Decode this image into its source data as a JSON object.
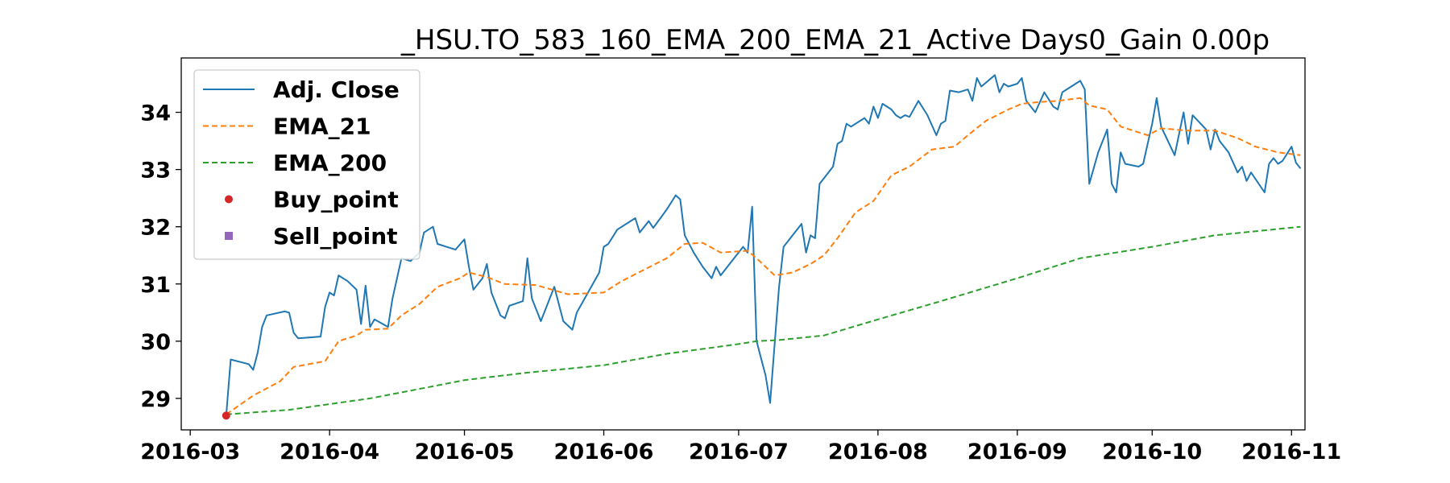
{
  "chart_data": {
    "type": "line",
    "title": "_HSU.TO_583_160_EMA_200_EMA_21_Active Days0_Gain   0.00p",
    "xlabel": "",
    "ylabel": "",
    "x_range": [
      "2016-02-28",
      "2016-11-04"
    ],
    "ylim": [
      28.45,
      34.95
    ],
    "x_ticks": [
      "2016-03",
      "2016-04",
      "2016-05",
      "2016-06",
      "2016-07",
      "2016-08",
      "2016-09",
      "2016-10",
      "2016-11"
    ],
    "y_ticks": [
      29,
      30,
      31,
      32,
      33,
      34
    ],
    "grid": false,
    "legend_position": "top-left",
    "series": [
      {
        "name": "Adj. Close",
        "style": "solid",
        "color": "#1f77b4",
        "points": [
          [
            "2016-03-09",
            28.7
          ],
          [
            "2016-03-10",
            29.68
          ],
          [
            "2016-03-14",
            29.6
          ],
          [
            "2016-03-15",
            29.5
          ],
          [
            "2016-03-16",
            29.8
          ],
          [
            "2016-03-17",
            30.25
          ],
          [
            "2016-03-18",
            30.45
          ],
          [
            "2016-03-22",
            30.52
          ],
          [
            "2016-03-23",
            30.5
          ],
          [
            "2016-03-24",
            30.15
          ],
          [
            "2016-03-25",
            30.05
          ],
          [
            "2016-03-30",
            30.08
          ],
          [
            "2016-03-31",
            30.6
          ],
          [
            "2016-04-01",
            30.85
          ],
          [
            "2016-04-02",
            30.8
          ],
          [
            "2016-04-03",
            31.15
          ],
          [
            "2016-04-05",
            31.05
          ],
          [
            "2016-04-07",
            30.9
          ],
          [
            "2016-04-08",
            30.3
          ],
          [
            "2016-04-09",
            30.97
          ],
          [
            "2016-04-10",
            30.25
          ],
          [
            "2016-04-11",
            30.38
          ],
          [
            "2016-04-14",
            30.25
          ],
          [
            "2016-04-15",
            30.75
          ],
          [
            "2016-04-17",
            31.45
          ],
          [
            "2016-04-19",
            31.4
          ],
          [
            "2016-04-21",
            31.55
          ],
          [
            "2016-04-22",
            31.9
          ],
          [
            "2016-04-24",
            32.0
          ],
          [
            "2016-04-25",
            31.7
          ],
          [
            "2016-04-27",
            31.65
          ],
          [
            "2016-04-29",
            31.6
          ],
          [
            "2016-05-01",
            31.78
          ],
          [
            "2016-05-02",
            31.3
          ],
          [
            "2016-05-03",
            30.9
          ],
          [
            "2016-05-05",
            31.1
          ],
          [
            "2016-05-06",
            31.35
          ],
          [
            "2016-05-07",
            30.85
          ],
          [
            "2016-05-09",
            30.45
          ],
          [
            "2016-05-10",
            30.4
          ],
          [
            "2016-05-11",
            30.62
          ],
          [
            "2016-05-14",
            30.7
          ],
          [
            "2016-05-15",
            31.45
          ],
          [
            "2016-05-16",
            30.75
          ],
          [
            "2016-05-18",
            30.35
          ],
          [
            "2016-05-21",
            30.95
          ],
          [
            "2016-05-23",
            30.35
          ],
          [
            "2016-05-25",
            30.2
          ],
          [
            "2016-05-26",
            30.5
          ],
          [
            "2016-05-31",
            31.2
          ],
          [
            "2016-06-01",
            31.65
          ],
          [
            "2016-06-02",
            31.7
          ],
          [
            "2016-06-04",
            31.95
          ],
          [
            "2016-06-08",
            32.15
          ],
          [
            "2016-06-09",
            31.9
          ],
          [
            "2016-06-11",
            32.1
          ],
          [
            "2016-06-12",
            31.98
          ],
          [
            "2016-06-15",
            32.3
          ],
          [
            "2016-06-17",
            32.55
          ],
          [
            "2016-06-18",
            32.48
          ],
          [
            "2016-06-19",
            31.85
          ],
          [
            "2016-06-21",
            31.55
          ],
          [
            "2016-06-23",
            31.3
          ],
          [
            "2016-06-25",
            31.1
          ],
          [
            "2016-06-26",
            31.3
          ],
          [
            "2016-06-27",
            31.15
          ],
          [
            "2016-06-30",
            31.45
          ],
          [
            "2016-07-02",
            31.65
          ],
          [
            "2016-07-03",
            31.55
          ],
          [
            "2016-07-04",
            32.35
          ],
          [
            "2016-07-05",
            30.0
          ],
          [
            "2016-07-07",
            29.4
          ],
          [
            "2016-07-08",
            28.92
          ],
          [
            "2016-07-10",
            30.95
          ],
          [
            "2016-07-11",
            31.65
          ],
          [
            "2016-07-15",
            32.05
          ],
          [
            "2016-07-16",
            31.55
          ],
          [
            "2016-07-17",
            31.85
          ],
          [
            "2016-07-18",
            31.8
          ],
          [
            "2016-07-19",
            32.75
          ],
          [
            "2016-07-22",
            33.05
          ],
          [
            "2016-07-23",
            33.45
          ],
          [
            "2016-07-24",
            33.5
          ],
          [
            "2016-07-25",
            33.8
          ],
          [
            "2016-07-26",
            33.75
          ],
          [
            "2016-07-29",
            33.9
          ],
          [
            "2016-07-30",
            33.8
          ],
          [
            "2016-07-31",
            34.1
          ],
          [
            "2016-08-01",
            33.9
          ],
          [
            "2016-08-02",
            34.15
          ],
          [
            "2016-08-04",
            34.05
          ],
          [
            "2016-08-05",
            33.95
          ],
          [
            "2016-08-06",
            33.9
          ],
          [
            "2016-08-07",
            33.95
          ],
          [
            "2016-08-08",
            33.92
          ],
          [
            "2016-08-10",
            34.2
          ],
          [
            "2016-08-12",
            33.95
          ],
          [
            "2016-08-14",
            33.6
          ],
          [
            "2016-08-15",
            33.8
          ],
          [
            "2016-08-16",
            33.85
          ],
          [
            "2016-08-17",
            34.38
          ],
          [
            "2016-08-19",
            34.35
          ],
          [
            "2016-08-21",
            34.4
          ],
          [
            "2016-08-22",
            34.2
          ],
          [
            "2016-08-23",
            34.6
          ],
          [
            "2016-08-24",
            34.45
          ],
          [
            "2016-08-27",
            34.65
          ],
          [
            "2016-08-28",
            34.35
          ],
          [
            "2016-08-29",
            34.5
          ],
          [
            "2016-08-30",
            34.45
          ],
          [
            "2016-09-01",
            34.5
          ],
          [
            "2016-09-02",
            34.6
          ],
          [
            "2016-09-03",
            34.2
          ],
          [
            "2016-09-05",
            34.0
          ],
          [
            "2016-09-07",
            34.35
          ],
          [
            "2016-09-09",
            34.1
          ],
          [
            "2016-09-10",
            34.05
          ],
          [
            "2016-09-11",
            34.35
          ],
          [
            "2016-09-13",
            34.45
          ],
          [
            "2016-09-15",
            34.55
          ],
          [
            "2016-09-16",
            34.4
          ],
          [
            "2016-09-17",
            32.75
          ],
          [
            "2016-09-19",
            33.3
          ],
          [
            "2016-09-21",
            33.7
          ],
          [
            "2016-09-22",
            32.75
          ],
          [
            "2016-09-23",
            32.6
          ],
          [
            "2016-09-24",
            33.3
          ],
          [
            "2016-09-25",
            33.1
          ],
          [
            "2016-09-28",
            33.05
          ],
          [
            "2016-09-29",
            33.1
          ],
          [
            "2016-10-01",
            33.8
          ],
          [
            "2016-10-02",
            34.25
          ],
          [
            "2016-10-03",
            33.75
          ],
          [
            "2016-10-06",
            33.25
          ],
          [
            "2016-10-08",
            34.0
          ],
          [
            "2016-10-09",
            33.45
          ],
          [
            "2016-10-10",
            33.95
          ],
          [
            "2016-10-13",
            33.7
          ],
          [
            "2016-10-14",
            33.35
          ],
          [
            "2016-10-15",
            33.7
          ],
          [
            "2016-10-16",
            33.5
          ],
          [
            "2016-10-18",
            33.3
          ],
          [
            "2016-10-20",
            32.95
          ],
          [
            "2016-10-21",
            33.05
          ],
          [
            "2016-10-22",
            32.8
          ],
          [
            "2016-10-23",
            32.95
          ],
          [
            "2016-10-26",
            32.6
          ],
          [
            "2016-10-27",
            33.1
          ],
          [
            "2016-10-28",
            33.2
          ],
          [
            "2016-10-29",
            33.1
          ],
          [
            "2016-10-30",
            33.15
          ],
          [
            "2016-11-01",
            33.4
          ],
          [
            "2016-11-02",
            33.12
          ],
          [
            "2016-11-03",
            33.02
          ]
        ]
      },
      {
        "name": "EMA_21",
        "style": "dashed",
        "color": "#ff7f0e",
        "points": [
          [
            "2016-03-09",
            28.72
          ],
          [
            "2016-03-15",
            29.05
          ],
          [
            "2016-03-21",
            29.3
          ],
          [
            "2016-03-24",
            29.55
          ],
          [
            "2016-03-31",
            29.65
          ],
          [
            "2016-04-03",
            30.0
          ],
          [
            "2016-04-07",
            30.1
          ],
          [
            "2016-04-09",
            30.2
          ],
          [
            "2016-04-14",
            30.22
          ],
          [
            "2016-04-17",
            30.45
          ],
          [
            "2016-04-21",
            30.65
          ],
          [
            "2016-04-25",
            30.95
          ],
          [
            "2016-04-30",
            31.1
          ],
          [
            "2016-05-02",
            31.2
          ],
          [
            "2016-05-06",
            31.12
          ],
          [
            "2016-05-10",
            31.0
          ],
          [
            "2016-05-17",
            30.98
          ],
          [
            "2016-05-24",
            30.82
          ],
          [
            "2016-06-01",
            30.85
          ],
          [
            "2016-06-05",
            31.05
          ],
          [
            "2016-06-10",
            31.25
          ],
          [
            "2016-06-15",
            31.45
          ],
          [
            "2016-06-19",
            31.7
          ],
          [
            "2016-06-23",
            31.72
          ],
          [
            "2016-06-27",
            31.55
          ],
          [
            "2016-07-03",
            31.58
          ],
          [
            "2016-07-05",
            31.45
          ],
          [
            "2016-07-09",
            31.15
          ],
          [
            "2016-07-13",
            31.2
          ],
          [
            "2016-07-17",
            31.35
          ],
          [
            "2016-07-20",
            31.5
          ],
          [
            "2016-07-23",
            31.8
          ],
          [
            "2016-07-27",
            32.25
          ],
          [
            "2016-07-31",
            32.45
          ],
          [
            "2016-08-04",
            32.9
          ],
          [
            "2016-08-08",
            33.05
          ],
          [
            "2016-08-13",
            33.35
          ],
          [
            "2016-08-18",
            33.4
          ],
          [
            "2016-08-21",
            33.6
          ],
          [
            "2016-08-25",
            33.85
          ],
          [
            "2016-08-30",
            34.05
          ],
          [
            "2016-09-02",
            34.15
          ],
          [
            "2016-09-06",
            34.18
          ],
          [
            "2016-09-10",
            34.2
          ],
          [
            "2016-09-15",
            34.25
          ],
          [
            "2016-09-17",
            34.12
          ],
          [
            "2016-09-21",
            34.05
          ],
          [
            "2016-09-24",
            33.75
          ],
          [
            "2016-09-30",
            33.6
          ],
          [
            "2016-10-03",
            33.72
          ],
          [
            "2016-10-09",
            33.68
          ],
          [
            "2016-10-15",
            33.68
          ],
          [
            "2016-10-20",
            33.55
          ],
          [
            "2016-10-24",
            33.4
          ],
          [
            "2016-10-29",
            33.3
          ],
          [
            "2016-11-03",
            33.25
          ]
        ]
      },
      {
        "name": "EMA_200",
        "style": "dashed",
        "color": "#2ca02c",
        "points": [
          [
            "2016-03-09",
            28.72
          ],
          [
            "2016-03-23",
            28.8
          ],
          [
            "2016-04-01",
            28.9
          ],
          [
            "2016-04-10",
            29.0
          ],
          [
            "2016-04-20",
            29.15
          ],
          [
            "2016-05-01",
            29.32
          ],
          [
            "2016-05-15",
            29.45
          ],
          [
            "2016-06-01",
            29.58
          ],
          [
            "2016-06-15",
            29.78
          ],
          [
            "2016-07-01",
            29.95
          ],
          [
            "2016-07-05",
            30.0
          ],
          [
            "2016-07-10",
            30.02
          ],
          [
            "2016-07-20",
            30.1
          ],
          [
            "2016-08-01",
            30.38
          ],
          [
            "2016-08-15",
            30.7
          ],
          [
            "2016-09-01",
            31.1
          ],
          [
            "2016-09-15",
            31.45
          ],
          [
            "2016-10-01",
            31.65
          ],
          [
            "2016-10-15",
            31.85
          ],
          [
            "2016-11-03",
            32.0
          ]
        ]
      }
    ],
    "buy_points": [
      [
        "2016-03-09",
        28.7
      ]
    ],
    "sell_points": []
  },
  "legend": [
    {
      "label": "Adj. Close",
      "kind": "solid-line",
      "color": "#1f77b4"
    },
    {
      "label": "EMA_21",
      "kind": "dashed-line",
      "color": "#ff7f0e"
    },
    {
      "label": "EMA_200",
      "kind": "dashed-line",
      "color": "#2ca02c"
    },
    {
      "label": "Buy_point",
      "kind": "circle-marker",
      "color": "#d62728"
    },
    {
      "label": "Sell_point",
      "kind": "square-marker",
      "color": "#9467bd"
    }
  ]
}
